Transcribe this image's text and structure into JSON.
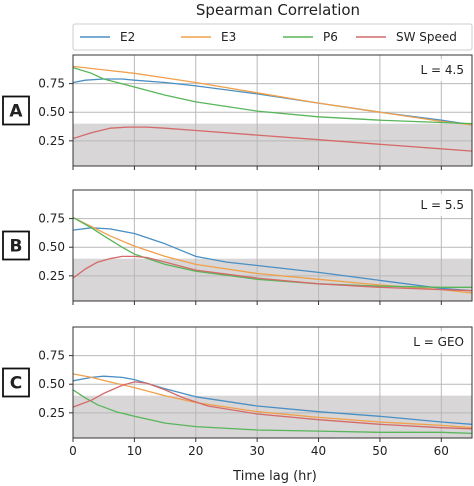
{
  "figure": {
    "title": "Spearman Correlation",
    "xlabel": "Time lag (hr)"
  },
  "colors": {
    "E2": "#4a8fc4",
    "E3": "#f0a04b",
    "P6": "#58b55a",
    "SW Speed": "#d46a6a",
    "band": "#d8d6d6",
    "grid": "#b9b9b9"
  },
  "chart_data": [
    {
      "type": "line",
      "panel": "A",
      "annotation": "L = 4.5",
      "xlim": [
        0,
        65
      ],
      "ylim": [
        0.03,
        1.0
      ],
      "xticks": [
        0,
        10,
        20,
        30,
        40,
        50,
        60
      ],
      "yticks": [
        0.25,
        0.5,
        0.75
      ],
      "ytick_labels": [
        "0.25",
        "0.50",
        "0.75"
      ],
      "shaded_band": [
        0,
        0.4
      ],
      "grid": true,
      "series": [
        {
          "name": "E2",
          "x": [
            0,
            2,
            5,
            8,
            10,
            15,
            20,
            30,
            40,
            50,
            60,
            65
          ],
          "y": [
            0.76,
            0.78,
            0.79,
            0.79,
            0.78,
            0.76,
            0.73,
            0.66,
            0.58,
            0.5,
            0.43,
            0.39
          ]
        },
        {
          "name": "E3",
          "x": [
            0,
            5,
            10,
            15,
            20,
            30,
            40,
            50,
            60,
            65
          ],
          "y": [
            0.9,
            0.87,
            0.84,
            0.8,
            0.76,
            0.67,
            0.58,
            0.5,
            0.42,
            0.39
          ]
        },
        {
          "name": "P6",
          "x": [
            0,
            3,
            5,
            10,
            15,
            20,
            30,
            40,
            50,
            60,
            65
          ],
          "y": [
            0.89,
            0.84,
            0.79,
            0.72,
            0.65,
            0.59,
            0.51,
            0.46,
            0.43,
            0.41,
            0.4
          ]
        },
        {
          "name": "SW Speed",
          "x": [
            0,
            3,
            6,
            9,
            12,
            15,
            20,
            30,
            40,
            50,
            60,
            65
          ],
          "y": [
            0.27,
            0.32,
            0.36,
            0.37,
            0.37,
            0.36,
            0.34,
            0.3,
            0.26,
            0.22,
            0.18,
            0.16
          ]
        }
      ]
    },
    {
      "type": "line",
      "panel": "B",
      "annotation": "L = 5.5",
      "xlim": [
        0,
        65
      ],
      "ylim": [
        0.03,
        1.0
      ],
      "xticks": [
        0,
        10,
        20,
        30,
        40,
        50,
        60
      ],
      "yticks": [
        0.25,
        0.5,
        0.75
      ],
      "ytick_labels": [
        "0.25",
        "0.50",
        "0.75"
      ],
      "shaded_band": [
        0,
        0.4
      ],
      "grid": true,
      "series": [
        {
          "name": "E2",
          "x": [
            0,
            3,
            6,
            10,
            15,
            20,
            25,
            30,
            40,
            50,
            60,
            65
          ],
          "y": [
            0.65,
            0.67,
            0.66,
            0.62,
            0.53,
            0.42,
            0.37,
            0.34,
            0.28,
            0.21,
            0.14,
            0.12
          ]
        },
        {
          "name": "E3",
          "x": [
            0,
            3,
            6,
            10,
            15,
            20,
            30,
            40,
            50,
            60,
            65
          ],
          "y": [
            0.76,
            0.68,
            0.6,
            0.51,
            0.42,
            0.35,
            0.27,
            0.22,
            0.17,
            0.13,
            0.1
          ]
        },
        {
          "name": "P6",
          "x": [
            0,
            3,
            5,
            8,
            10,
            15,
            20,
            30,
            40,
            50,
            60,
            65
          ],
          "y": [
            0.76,
            0.67,
            0.6,
            0.5,
            0.44,
            0.35,
            0.29,
            0.22,
            0.18,
            0.16,
            0.15,
            0.15
          ]
        },
        {
          "name": "SW Speed",
          "x": [
            0,
            2,
            4,
            6,
            8,
            10,
            12,
            15,
            20,
            30,
            40,
            50,
            60,
            65
          ],
          "y": [
            0.23,
            0.31,
            0.37,
            0.4,
            0.42,
            0.42,
            0.41,
            0.37,
            0.3,
            0.23,
            0.18,
            0.15,
            0.13,
            0.12
          ]
        }
      ]
    },
    {
      "type": "line",
      "panel": "C",
      "annotation": "L = GEO",
      "xlim": [
        0,
        65
      ],
      "ylim": [
        0.03,
        1.0
      ],
      "xticks": [
        0,
        10,
        20,
        30,
        40,
        50,
        60
      ],
      "yticks": [
        0.25,
        0.5,
        0.75
      ],
      "ytick_labels": [
        "0.25",
        "0.50",
        "0.75"
      ],
      "shaded_band": [
        0,
        0.4
      ],
      "grid": true,
      "series": [
        {
          "name": "E2",
          "x": [
            0,
            3,
            5,
            8,
            10,
            15,
            20,
            30,
            40,
            50,
            60,
            65
          ],
          "y": [
            0.53,
            0.56,
            0.57,
            0.56,
            0.54,
            0.46,
            0.39,
            0.31,
            0.26,
            0.22,
            0.17,
            0.15
          ]
        },
        {
          "name": "E3",
          "x": [
            0,
            3,
            6,
            10,
            15,
            20,
            30,
            40,
            50,
            60,
            65
          ],
          "y": [
            0.59,
            0.56,
            0.52,
            0.47,
            0.4,
            0.34,
            0.26,
            0.21,
            0.17,
            0.14,
            0.12
          ]
        },
        {
          "name": "P6",
          "x": [
            0,
            2,
            4,
            7,
            10,
            15,
            20,
            30,
            40,
            50,
            60,
            65
          ],
          "y": [
            0.45,
            0.38,
            0.32,
            0.26,
            0.22,
            0.16,
            0.13,
            0.1,
            0.09,
            0.08,
            0.08,
            0.07
          ]
        },
        {
          "name": "SW Speed",
          "x": [
            0,
            3,
            5,
            8,
            10,
            12,
            15,
            18,
            22,
            30,
            40,
            50,
            60,
            65
          ],
          "y": [
            0.3,
            0.36,
            0.42,
            0.49,
            0.52,
            0.51,
            0.45,
            0.38,
            0.31,
            0.24,
            0.19,
            0.15,
            0.12,
            0.11
          ]
        }
      ]
    }
  ]
}
